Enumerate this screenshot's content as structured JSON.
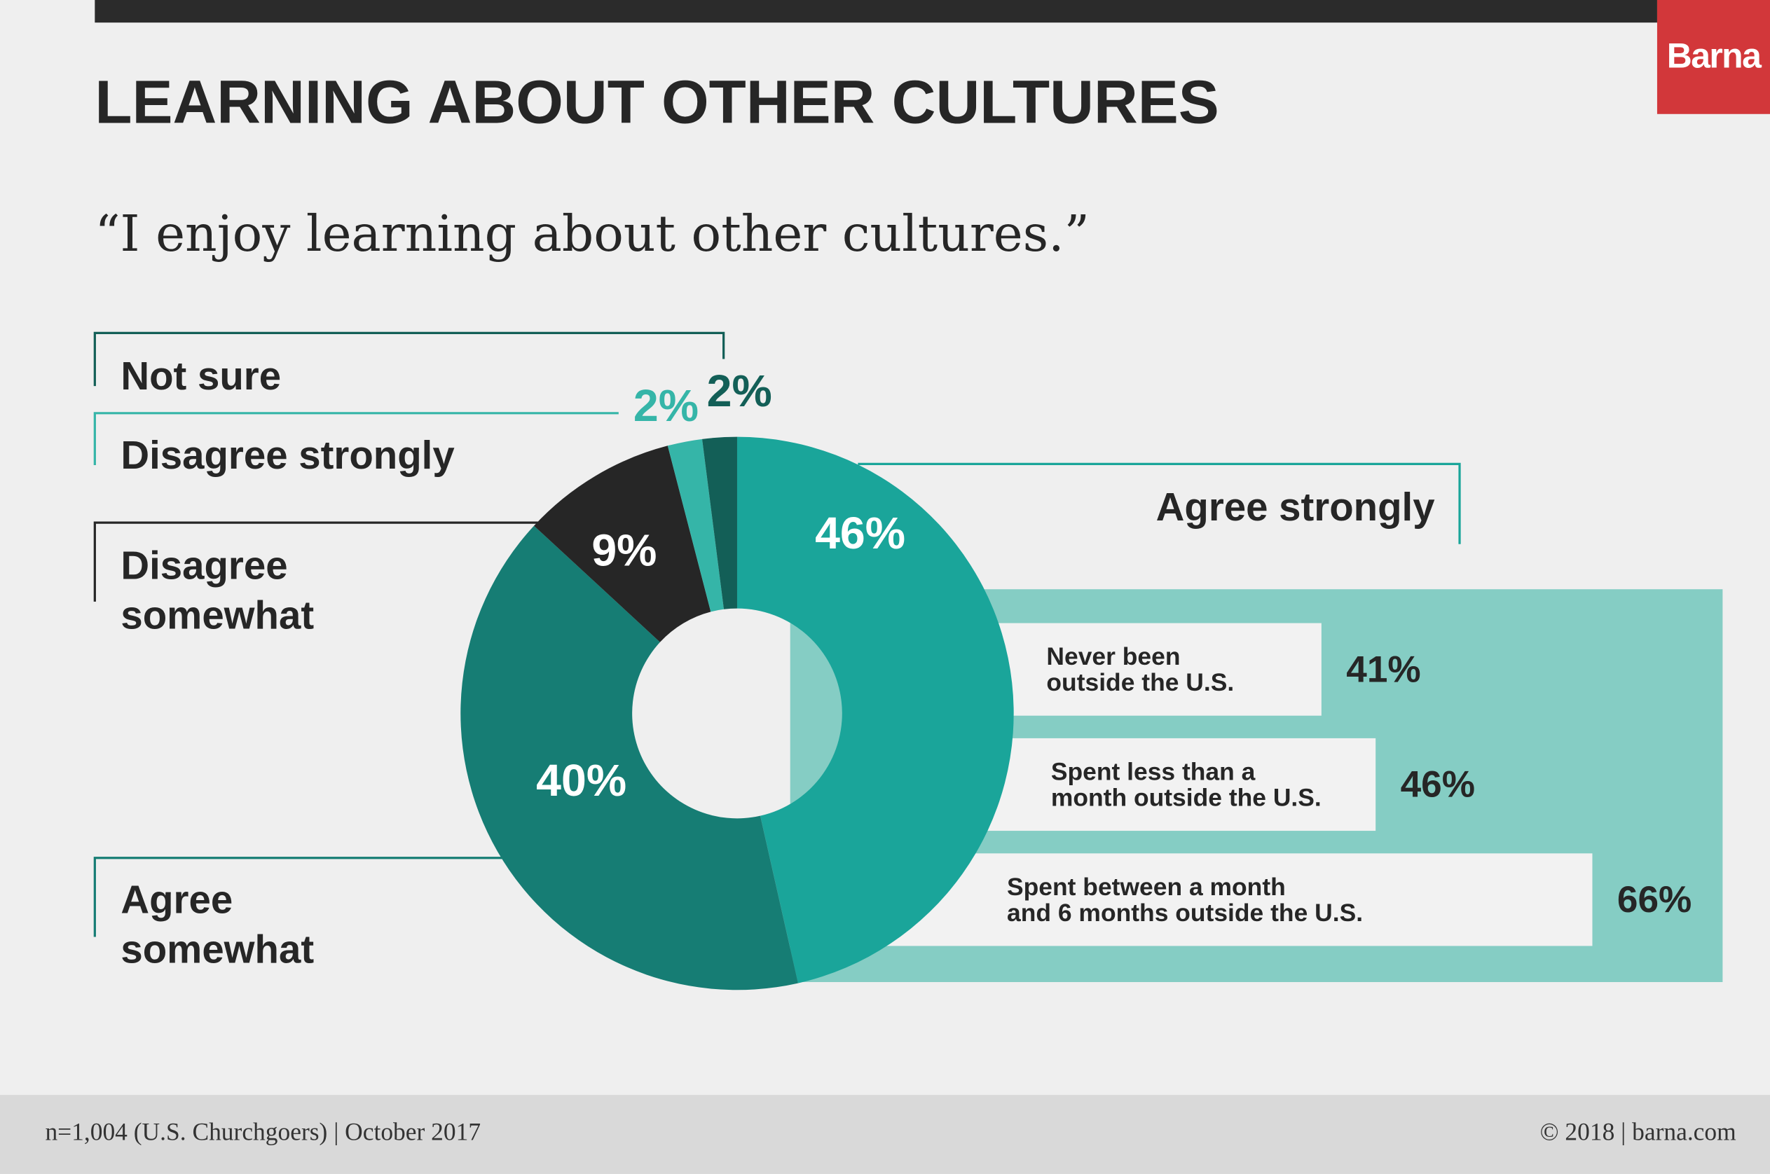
{
  "header": {
    "brand": "Barna"
  },
  "chart_data": [
    {
      "type": "donut",
      "title": "LEARNING ABOUT OTHER CULTURES",
      "subtitle": "“I enjoy learning about other cultures.”",
      "categories": [
        "Agree strongly",
        "Agree\nsomewhat",
        "Disagree\nsomewhat",
        "Disagree strongly",
        "Not sure"
      ],
      "values": [
        46,
        40,
        9,
        2,
        2
      ],
      "value_labels": [
        "46%",
        "40%",
        "9%",
        "2%",
        "2%"
      ],
      "colors": [
        "#1aa59a",
        "#167d74",
        "#262626",
        "#35b5a8",
        "#135f57"
      ]
    },
    {
      "type": "bar",
      "categories": [
        "Never been\noutside the U.S.",
        "Spent less than a\nmonth outside the U.S.",
        "Spent between a month\nand 6 months outside the U.S."
      ],
      "values": [
        41,
        46,
        66
      ],
      "value_labels": [
        "41%",
        "46%",
        "66%"
      ],
      "color": "#f2f2f2",
      "background": "#85cdc4"
    }
  ],
  "footer": {
    "source": "n=1,004 (U.S. Churchgoers) | October 2017",
    "copyright": "© 2018 | barna.com"
  }
}
